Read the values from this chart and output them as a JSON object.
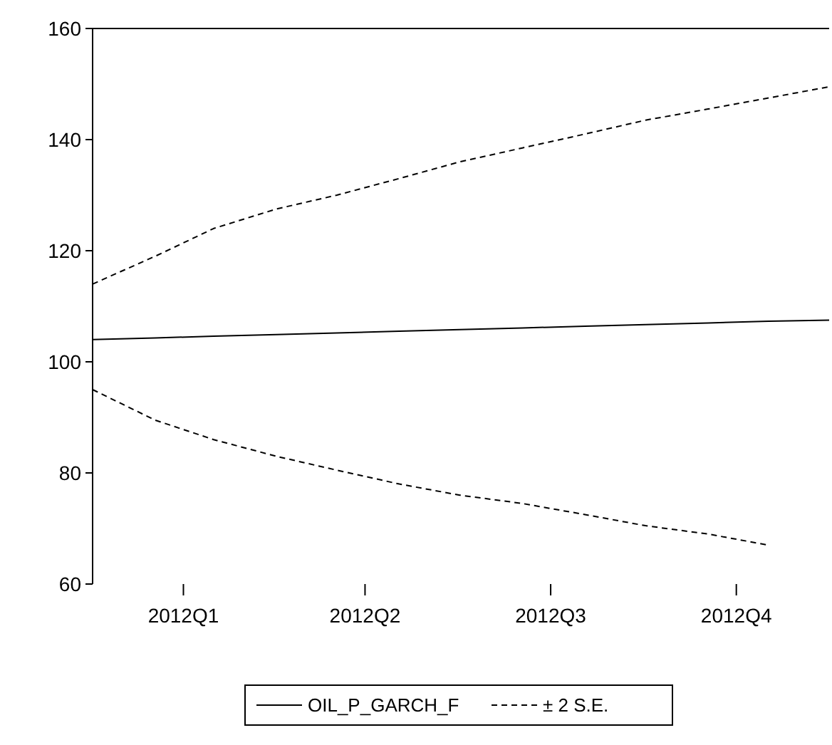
{
  "chart_data": {
    "type": "line",
    "x": [
      "2012-01-01",
      "2012-02-01",
      "2012-03-01",
      "2012-04-01",
      "2012-05-01",
      "2012-06-01",
      "2012-07-01",
      "2012-08-01",
      "2012-09-01",
      "2012-10-01",
      "2012-11-01",
      "2012-12-01",
      "2012-12-31"
    ],
    "series": [
      {
        "name": "OIL_P_GARCH_F",
        "color": "#000000",
        "line_style": "solid",
        "values": [
          104,
          104.3,
          104.6,
          104.9,
          105.2,
          105.5,
          105.8,
          106.1,
          106.4,
          106.7,
          107,
          107.3,
          107.5
        ]
      },
      {
        "name": "± 2 S.E.",
        "color": "#000000",
        "line_style": "dashed",
        "values": [
          114,
          119,
          124,
          127.5,
          130,
          133,
          136,
          138.5,
          141,
          143.5,
          145.5,
          147.5,
          149.5
        ]
      },
      {
        "color": "#000000",
        "line_style": "dashed",
        "values": [
          95,
          89.5,
          86,
          83,
          80.5,
          78,
          76,
          74.5,
          72.5,
          70.5,
          69,
          67,
          null
        ]
      }
    ],
    "xlim": [
      "2012-01-01",
      "2012-12-31"
    ],
    "xticks": [
      {
        "value": "2012-02-15",
        "label": "2012Q1"
      },
      {
        "value": "2012-05-15",
        "label": "2012Q2"
      },
      {
        "value": "2012-08-15",
        "label": "2012Q3"
      },
      {
        "value": "2012-11-15",
        "label": "2012Q4"
      }
    ],
    "ylim": [
      60,
      160
    ],
    "yticks": [
      60,
      80,
      100,
      120,
      140,
      160
    ],
    "grid": false,
    "legend": "bottom"
  }
}
